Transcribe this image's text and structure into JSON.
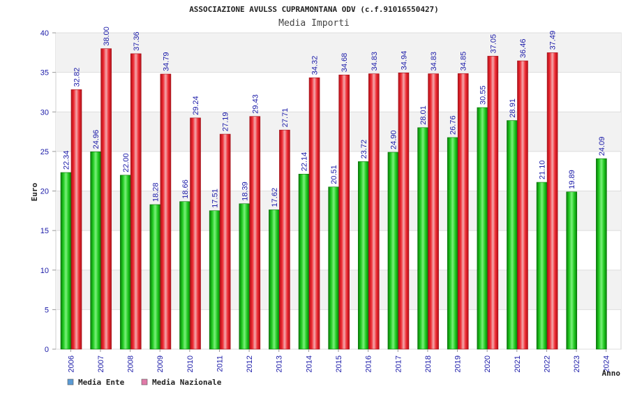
{
  "chart_data": {
    "type": "bar",
    "title": "ASSOCIAZIONE AVULSS CUPRAMONTANA ODV (c.f.91016550427)",
    "subtitle": "Media Importi",
    "xlabel": "Anno",
    "ylabel": "Euro",
    "ylim": [
      0,
      40
    ],
    "yticks": [
      "0",
      "5",
      "10",
      "15",
      "20",
      "25",
      "30",
      "35",
      "40"
    ],
    "categories": [
      "2006",
      "2007",
      "2008",
      "2009",
      "2010",
      "2011",
      "2012",
      "2013",
      "2014",
      "2015",
      "2016",
      "2017",
      "2018",
      "2019",
      "2020",
      "2021",
      "2022",
      "2023",
      "2024"
    ],
    "series": [
      {
        "name": "Media Ente",
        "color": "#12b512",
        "values": [
          22.34,
          24.96,
          22.0,
          18.28,
          18.66,
          17.51,
          18.39,
          17.62,
          22.14,
          20.51,
          23.72,
          24.9,
          28.01,
          26.76,
          30.55,
          28.91,
          21.1,
          19.89,
          24.09
        ],
        "labels": [
          "22.34",
          "24.96",
          "22.00",
          "18.28",
          "18.66",
          "17.51",
          "18.39",
          "17.62",
          "22.14",
          "20.51",
          "23.72",
          "24.90",
          "28.01",
          "26.76",
          "30.55",
          "28.91",
          "21.10",
          "19.89",
          "24.09"
        ]
      },
      {
        "name": "Media Nazionale",
        "color": "#e8202a",
        "values": [
          32.82,
          38.0,
          37.36,
          34.79,
          29.24,
          27.19,
          29.43,
          27.71,
          34.32,
          34.68,
          34.83,
          34.94,
          34.83,
          34.85,
          37.05,
          36.46,
          37.49,
          null,
          null
        ],
        "labels": [
          "32.82",
          "38.00",
          "37.36",
          "34.79",
          "29.24",
          "27.19",
          "29.43",
          "27.71",
          "34.32",
          "34.68",
          "34.83",
          "34.94",
          "34.83",
          "34.85",
          "37.05",
          "36.46",
          "37.49",
          null,
          null
        ]
      }
    ],
    "legend": [
      {
        "label": "Media Ente",
        "color": "#5b9bd5"
      },
      {
        "label": "Media Nazionale",
        "color": "#e07aa8"
      }
    ],
    "grid": true,
    "legend_position": "bottom-left"
  }
}
